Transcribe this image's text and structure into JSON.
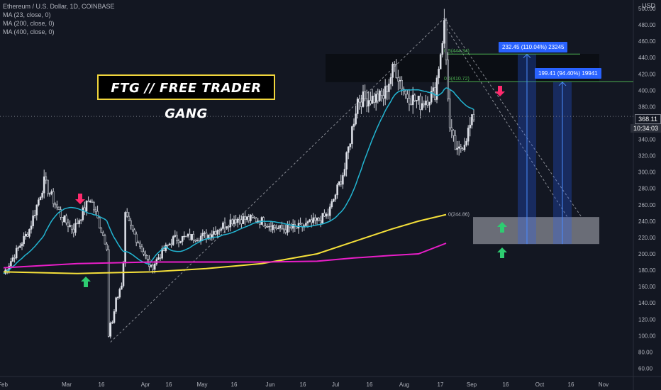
{
  "legend": {
    "symbol": "Ethereum / U.S. Dollar, 1D, COINBASE",
    "ma23": "MA (23, close, 0)",
    "ma200": "MA (200, close, 0)",
    "ma400": "MA (400, close, 0)"
  },
  "currency": "USD",
  "banner": "FTG // FREE TRADER GANG",
  "price_badge": {
    "price": "368.11",
    "countdown": "10:34:03"
  },
  "colors": {
    "background": "#131722",
    "up": "#e0e3eb",
    "down": "#131722",
    "ma23": "#22b5d2",
    "ma200": "#f5e03a",
    "ma400": "#e91ec8",
    "fib_line": "#4caf50",
    "tag_blue": "#2962ff",
    "arrow_down": "#ff2a6d",
    "arrow_up": "#2ecc71"
  },
  "chart_data": {
    "type": "candlestick",
    "y_axis": {
      "min": 50,
      "max": 500,
      "ticks": [
        60,
        80,
        100,
        120,
        140,
        160,
        180,
        200,
        220,
        240,
        260,
        280,
        300,
        320,
        340,
        360,
        380,
        400,
        420,
        440,
        460,
        480,
        500
      ]
    },
    "x_axis": {
      "labels": [
        "Feb",
        "Mar",
        "16",
        "Apr",
        "16",
        "May",
        "16",
        "Jun",
        "16",
        "Jul",
        "16",
        "Aug",
        "17",
        "Sep",
        "16",
        "Oct",
        "16",
        "Nov"
      ]
    },
    "anchors": [
      {
        "d": 0,
        "p": 176
      },
      {
        "d": 14,
        "p": 230
      },
      {
        "d": 22,
        "p": 288
      },
      {
        "d": 32,
        "p": 243
      },
      {
        "d": 38,
        "p": 230
      },
      {
        "d": 47,
        "p": 268
      },
      {
        "d": 56,
        "p": 210
      },
      {
        "d": 66,
        "p": 245
      },
      {
        "d": 73,
        "p": 215
      },
      {
        "d": 80,
        "p": 182
      },
      {
        "d": 84,
        "p": 196
      },
      {
        "d": 92,
        "p": 218
      },
      {
        "d": 100,
        "p": 220
      },
      {
        "d": 110,
        "p": 222
      },
      {
        "d": 125,
        "p": 243
      },
      {
        "d": 138,
        "p": 242
      },
      {
        "d": 150,
        "p": 230
      },
      {
        "d": 160,
        "p": 232
      },
      {
        "d": 170,
        "p": 240
      },
      {
        "d": 176,
        "p": 248
      },
      {
        "d": 185,
        "p": 304
      },
      {
        "d": 192,
        "p": 389
      },
      {
        "d": 200,
        "p": 390
      },
      {
        "d": 206,
        "p": 392
      },
      {
        "d": 212,
        "p": 430
      },
      {
        "d": 218,
        "p": 395
      },
      {
        "d": 226,
        "p": 384
      },
      {
        "d": 234,
        "p": 398
      },
      {
        "d": 239,
        "p": 480
      },
      {
        "d": 242,
        "p": 352
      },
      {
        "d": 246,
        "p": 322
      },
      {
        "d": 250,
        "p": 338
      },
      {
        "d": 255,
        "p": 368
      }
    ],
    "arch_low": {
      "d": 58,
      "p": 100
    },
    "top": {
      "d": 239,
      "p": 478
    },
    "fib_levels": [
      {
        "label": "0.5(444.34)",
        "price": 444.34
      },
      {
        "label": "0.5(410.72)",
        "price": 410.72
      },
      {
        "label": "0(244.86)",
        "price": 244.86
      }
    ],
    "zones": [
      {
        "name": "resistance",
        "from": 410,
        "to": 444
      },
      {
        "name": "support",
        "from": 212,
        "to": 245
      }
    ],
    "targets": [
      {
        "label": "232.45 (110.04%) 23245",
        "from": 444,
        "to": 212
      },
      {
        "label": "199.41 (94.40%) 19941",
        "from": 410,
        "to": 212
      }
    ],
    "last_price": 368.11
  }
}
